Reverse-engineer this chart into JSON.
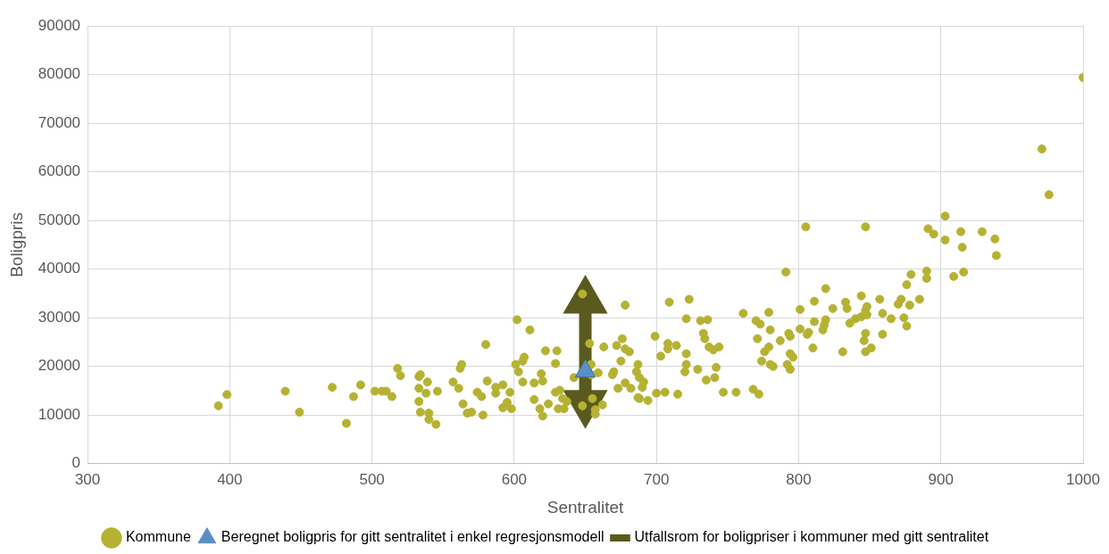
{
  "chart_data": {
    "type": "scatter",
    "xlabel": "Sentralitet",
    "ylabel": "Boligpris",
    "xlim": [
      300,
      1000
    ],
    "xticks": [
      300,
      400,
      500,
      600,
      700,
      800,
      900,
      1000
    ],
    "ylim": [
      0,
      90000
    ],
    "yticks": [
      0,
      10000,
      20000,
      30000,
      40000,
      50000,
      60000,
      70000,
      80000,
      90000
    ],
    "grid": true,
    "legend": "bottom",
    "series": [
      {
        "name": "Kommune",
        "marker": "circle",
        "color": "#b5b233",
        "x": [
          392,
          398,
          439,
          449,
          472,
          482,
          487,
          492,
          502,
          507,
          510,
          514,
          518,
          520,
          534,
          533,
          539,
          533,
          538,
          546,
          533,
          534,
          540,
          540,
          545,
          563,
          562,
          557,
          561,
          564,
          567,
          570,
          580,
          581,
          574,
          577,
          578,
          587,
          587,
          592,
          592,
          602,
          611,
          622,
          630,
          629,
          606,
          601,
          603,
          607,
          606,
          619,
          620,
          614,
          614,
          597,
          595,
          598,
          618,
          620,
          624,
          629,
          632,
          634,
          637,
          635,
          631,
          648,
          653,
          654,
          654,
          648,
          655,
          657,
          657,
          662,
          642,
          659,
          663,
          678,
          672,
          676,
          678,
          681,
          675,
          670,
          669,
          673,
          678,
          682,
          687,
          686,
          688,
          691,
          690,
          687,
          694,
          699,
          703,
          708,
          708,
          714,
          700,
          706,
          715,
          709,
          723,
          721,
          731,
          736,
          733,
          734,
          737,
          740,
          744,
          721,
          721,
          720,
          729,
          735,
          741,
          742,
          688,
          747,
          756,
          772,
          761,
          768,
          770,
          773,
          771,
          779,
          780,
          779,
          776,
          774,
          780,
          782,
          787,
          791,
          793,
          794,
          794,
          796,
          792,
          794,
          801,
          801,
          806,
          807,
          805,
          810,
          811,
          811,
          817,
          818,
          819,
          819,
          824,
          831,
          833,
          834,
          836,
          840,
          844,
          844,
          847,
          847,
          846,
          847,
          847,
          848,
          848,
          851,
          857,
          859,
          859,
          865,
          870,
          872,
          874,
          876,
          878,
          876,
          879,
          885,
          890,
          890,
          891,
          895,
          903,
          903,
          909,
          916,
          914,
          915,
          929,
          938,
          939,
          971,
          976,
          1000
        ],
        "values": [
          11900,
          14200,
          14900,
          10600,
          15700,
          8300,
          13800,
          16200,
          14900,
          14900,
          14900,
          13800,
          19600,
          18100,
          18300,
          17900,
          16800,
          15500,
          14500,
          14900,
          12800,
          10600,
          10400,
          9100,
          8100,
          20400,
          19600,
          16800,
          15500,
          12300,
          10400,
          10600,
          24500,
          17000,
          14700,
          13800,
          10000,
          15700,
          14500,
          16200,
          11500,
          29600,
          27500,
          23200,
          23200,
          20600,
          16800,
          20400,
          18900,
          21900,
          21100,
          18500,
          17000,
          16600,
          13200,
          14700,
          12600,
          11300,
          11300,
          9800,
          12300,
          14700,
          15100,
          13400,
          12800,
          11300,
          11300,
          34900,
          24700,
          20400,
          18300,
          11900,
          13400,
          11100,
          10200,
          12100,
          17700,
          18700,
          24000,
          32600,
          24300,
          25700,
          23600,
          23000,
          21100,
          18900,
          18300,
          15500,
          16600,
          15500,
          20400,
          18900,
          17700,
          16800,
          15700,
          13600,
          13000,
          26200,
          22100,
          24700,
          23600,
          24300,
          14500,
          14700,
          14300,
          33200,
          33800,
          29800,
          29400,
          29600,
          26800,
          25700,
          24000,
          23400,
          24000,
          22600,
          20400,
          18900,
          19400,
          17200,
          17700,
          19800,
          13400,
          14700,
          14700,
          14300,
          30900,
          15300,
          29400,
          28700,
          25700,
          31100,
          27500,
          24000,
          23000,
          21100,
          20400,
          20000,
          25300,
          39400,
          26800,
          26200,
          22600,
          21900,
          20400,
          19400,
          31700,
          27700,
          26600,
          27000,
          48700,
          23800,
          33400,
          29200,
          27500,
          28500,
          29600,
          36000,
          31900,
          23000,
          33200,
          31900,
          28900,
          29800,
          30200,
          34500,
          48700,
          26800,
          25300,
          23000,
          31500,
          30600,
          32300,
          23800,
          33800,
          30900,
          26600,
          29800,
          32800,
          33800,
          30000,
          28300,
          32600,
          36800,
          38900,
          33800,
          39600,
          38100,
          48300,
          47200,
          50900,
          46000,
          38500,
          39400,
          47700,
          44500,
          47700,
          46200,
          42800,
          64700,
          55300,
          79400
        ]
      },
      {
        "name": "Beregnet boligpris for gitt sentralitet i enkel regresjonsmodell",
        "type": "scatter",
        "marker": "triangle",
        "color": "#5b8fc4",
        "x": [
          650
        ],
        "values": [
          19000
        ]
      },
      {
        "name": "Utfallsrom for boligpriser i kommuner med gitt sentralitet",
        "type": "line",
        "marker": "triangle",
        "color": "#5a5a1e",
        "x": [
          650,
          650
        ],
        "values": [
          12500,
          33500
        ]
      }
    ]
  }
}
